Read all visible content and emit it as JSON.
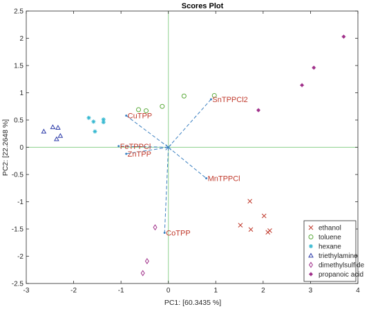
{
  "chart_data": {
    "type": "scatter",
    "title": "Scores Plot",
    "xlabel": "PC1: [60.3435 %]",
    "ylabel": "PC2: [22.2648 %]",
    "xlim": [
      -3,
      4
    ],
    "ylim": [
      -2.5,
      2.5
    ],
    "xticks": [
      "-3",
      "-2",
      "-1",
      "0",
      "1",
      "2",
      "3",
      "4"
    ],
    "yticks": [
      "2.5",
      "2",
      "1.5",
      "1",
      "0.5",
      "0",
      "-0.5",
      "-1",
      "-1.5",
      "-2",
      "-2.5"
    ],
    "grid": false,
    "zero_lines_color": "#8fd18f",
    "legend_position": "bottom-right",
    "series": [
      {
        "name": "ethanol",
        "marker": "x",
        "color": "#c0392b",
        "x": [
          1.72,
          1.52,
          1.74,
          2.02,
          2.1,
          2.14
        ],
        "y": [
          -0.99,
          -1.43,
          -1.51,
          -1.26,
          -1.56,
          -1.53
        ]
      },
      {
        "name": "toluene",
        "marker": "circle",
        "color": "#5aaa3a",
        "x": [
          -0.63,
          -0.47,
          -0.13,
          0.33,
          0.97
        ],
        "y": [
          0.69,
          0.67,
          0.75,
          0.94,
          0.95
        ]
      },
      {
        "name": "hexane",
        "marker": "star",
        "color": "#35b8d0",
        "x": [
          -1.68,
          -1.58,
          -1.37,
          -1.37,
          -1.55
        ],
        "y": [
          0.54,
          0.47,
          0.46,
          0.51,
          0.29
        ]
      },
      {
        "name": "triethylamine",
        "marker": "triangle",
        "color": "#2b3aa8",
        "x": [
          -2.63,
          -2.44,
          -2.33,
          -2.36,
          -2.28
        ],
        "y": [
          0.29,
          0.37,
          0.36,
          0.15,
          0.21
        ]
      },
      {
        "name": "dimethylsulfide",
        "marker": "diamond",
        "color": "#a0308a",
        "x": [
          -0.28,
          -0.45,
          -0.54
        ],
        "y": [
          -1.47,
          -2.09,
          -2.31
        ]
      },
      {
        "name": "propanoic acid",
        "marker": "dot",
        "color": "#a0308a",
        "x": [
          1.9,
          2.82,
          3.07,
          3.7
        ],
        "y": [
          0.68,
          1.14,
          1.46,
          2.03
        ]
      }
    ],
    "loadings": [
      {
        "label": "CuTPP",
        "x": -0.89,
        "y": 0.58
      },
      {
        "label": "SnTPPCl2",
        "x": 0.9,
        "y": 0.88
      },
      {
        "label": "FeTPPCl",
        "x": -1.05,
        "y": 0.02
      },
      {
        "label": "ZnTPP",
        "x": -0.89,
        "y": -0.12
      },
      {
        "label": "MnTPPCl",
        "x": 0.8,
        "y": -0.57
      },
      {
        "label": "CoTPP",
        "x": -0.08,
        "y": -1.57
      }
    ],
    "loading_color": "#3a7fc0",
    "loading_label_color": "#c0392b"
  }
}
